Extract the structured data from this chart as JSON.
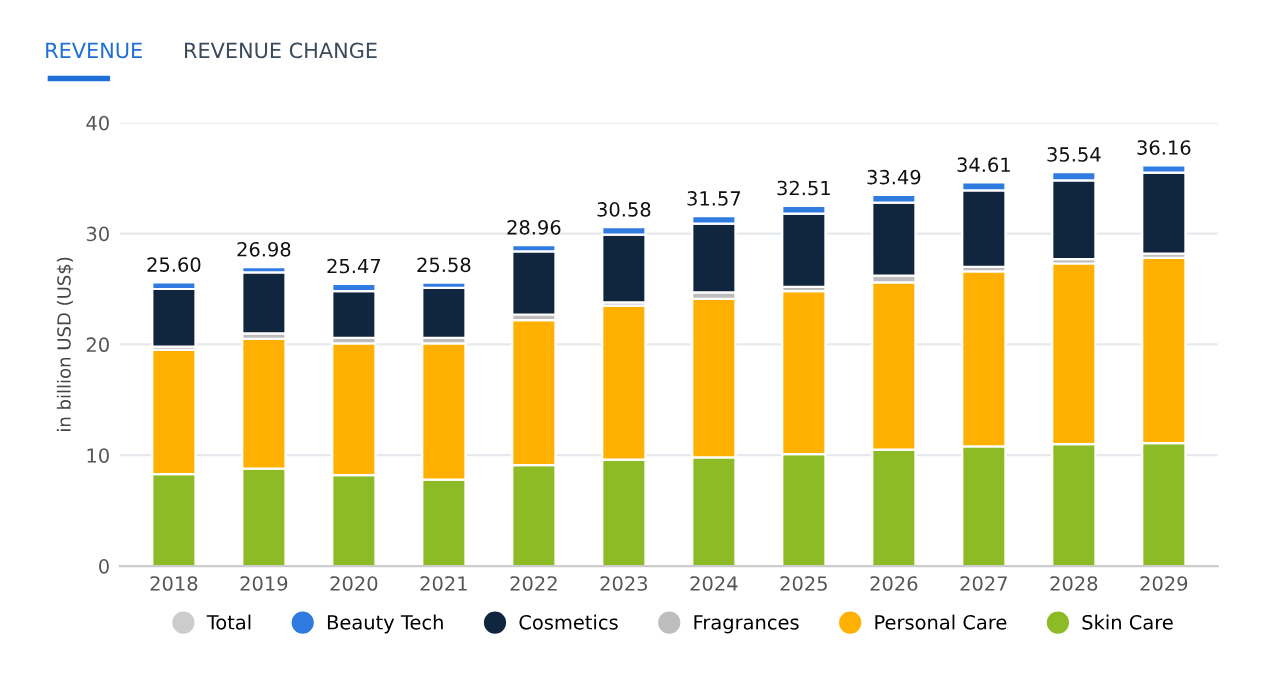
{
  "chart_data": {
    "type": "bar",
    "stacked": true,
    "annotations": [
      "REVENUE",
      "REVENUE CHANGE"
    ],
    "ylabel": "in billion USD (US$)",
    "categories": [
      "2018",
      "2019",
      "2020",
      "2021",
      "2022",
      "2023",
      "2024",
      "2025",
      "2026",
      "2027",
      "2028",
      "2029"
    ],
    "series": [
      {
        "name": "Skin Care",
        "color": "#8cbb26",
        "values": [
          8.3,
          8.8,
          8.2,
          7.8,
          9.1,
          9.6,
          9.8,
          10.1,
          10.5,
          10.8,
          11.0,
          11.1
        ]
      },
      {
        "name": "Personal Care",
        "color": "#ffb000",
        "values": [
          11.2,
          11.7,
          11.9,
          12.3,
          13.1,
          13.9,
          14.3,
          14.7,
          15.1,
          15.8,
          16.3,
          16.7
        ]
      },
      {
        "name": "Fragrances",
        "color": "#bdbdbd",
        "values": [
          0.3,
          0.5,
          0.5,
          0.5,
          0.5,
          0.3,
          0.6,
          0.4,
          0.6,
          0.4,
          0.4,
          0.4
        ]
      },
      {
        "name": "Cosmetics",
        "color": "#10263f",
        "values": [
          5.2,
          5.5,
          4.2,
          4.5,
          5.7,
          6.1,
          6.2,
          6.6,
          6.6,
          6.9,
          7.1,
          7.3
        ]
      },
      {
        "name": "Beauty Tech",
        "color": "#2f7be0",
        "values": [
          0.6,
          0.48,
          0.67,
          0.48,
          0.56,
          0.68,
          0.67,
          0.71,
          0.69,
          0.71,
          0.74,
          0.66
        ]
      },
      {
        "name": "Total",
        "color": "#cccccc",
        "values": [
          null,
          null,
          null,
          null,
          null,
          null,
          null,
          null,
          null,
          null,
          null,
          null
        ]
      }
    ],
    "totals": [
      "25.60",
      "26.98",
      "25.47",
      "25.58",
      "28.96",
      "30.58",
      "31.57",
      "32.51",
      "33.49",
      "34.61",
      "35.54",
      "36.16"
    ],
    "ylim": [
      0,
      40
    ],
    "yticks": [
      0,
      10,
      20,
      30,
      40
    ],
    "grid": "y",
    "legend": "bottom"
  }
}
